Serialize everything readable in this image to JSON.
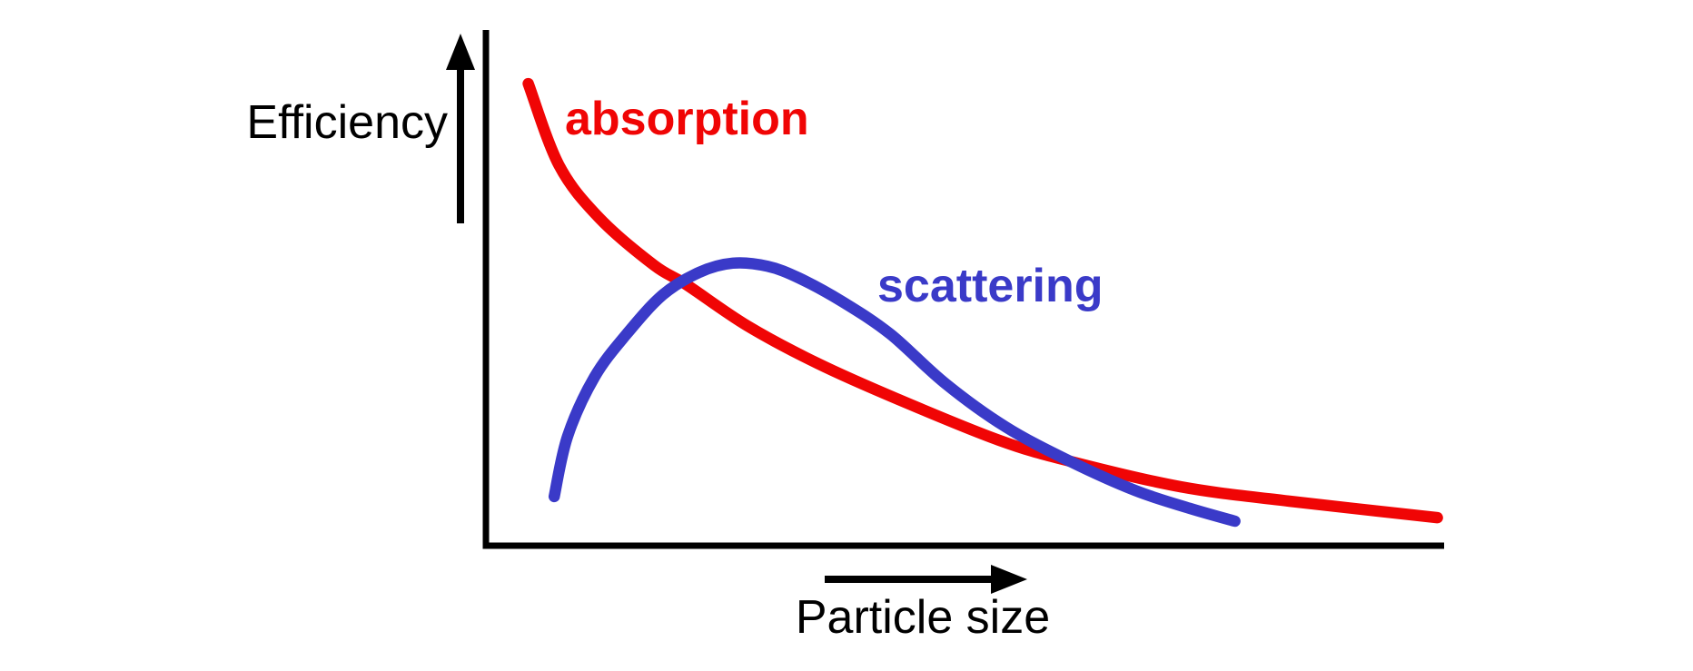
{
  "figure": {
    "background": "#ffffff",
    "axis_color": "#000000"
  },
  "chart_data": {
    "type": "line",
    "title": "",
    "xlabel": "Particle size",
    "ylabel": "Efficiency",
    "x_axis": {
      "label": "Particle size",
      "arrow": true,
      "numeric_ticks": [],
      "range_note": "qualitative, unlabeled scale"
    },
    "y_axis": {
      "label": "Efficiency",
      "arrow": true,
      "numeric_ticks": [],
      "range_note": "qualitative, unlabeled scale"
    },
    "legend_position": "inline-curve-labels",
    "grid": false,
    "series": [
      {
        "name": "absorption",
        "color": "#f00505",
        "shape": "monotonic decay (1/x-like), starts high at small particle size and flattens toward zero",
        "x": [
          0.046,
          0.078,
          0.12,
          0.177,
          0.21,
          0.274,
          0.347,
          0.432,
          0.536,
          0.61,
          0.726,
          0.839,
          0.993
        ],
        "y": [
          0.899,
          0.74,
          0.637,
          0.545,
          0.508,
          0.427,
          0.354,
          0.283,
          0.204,
          0.163,
          0.113,
          0.085,
          0.053
        ]
      },
      {
        "name": "scattering",
        "color": "#3a3ac8",
        "shape": "rises from near zero, peaks at intermediate particle size, then decays; crosses absorption twice",
        "x": [
          0.073,
          0.087,
          0.115,
          0.149,
          0.186,
          0.224,
          0.259,
          0.295,
          0.328,
          0.373,
          0.423,
          0.48,
          0.543,
          0.61,
          0.678,
          0.735,
          0.782
        ],
        "y": [
          0.094,
          0.212,
          0.327,
          0.412,
          0.487,
          0.531,
          0.549,
          0.543,
          0.52,
          0.474,
          0.411,
          0.315,
          0.23,
          0.163,
          0.106,
          0.071,
          0.046
        ]
      }
    ],
    "annotations": [
      {
        "text": "absorption",
        "color": "#f00505",
        "position": "upper left, right of red curve start"
      },
      {
        "text": "scattering",
        "color": "#3a3ac8",
        "position": "right of blue curve peak"
      }
    ],
    "crossings_normalized": [
      {
        "x": 0.21,
        "y": 0.51
      },
      {
        "x": 0.61,
        "y": 0.16
      }
    ]
  }
}
